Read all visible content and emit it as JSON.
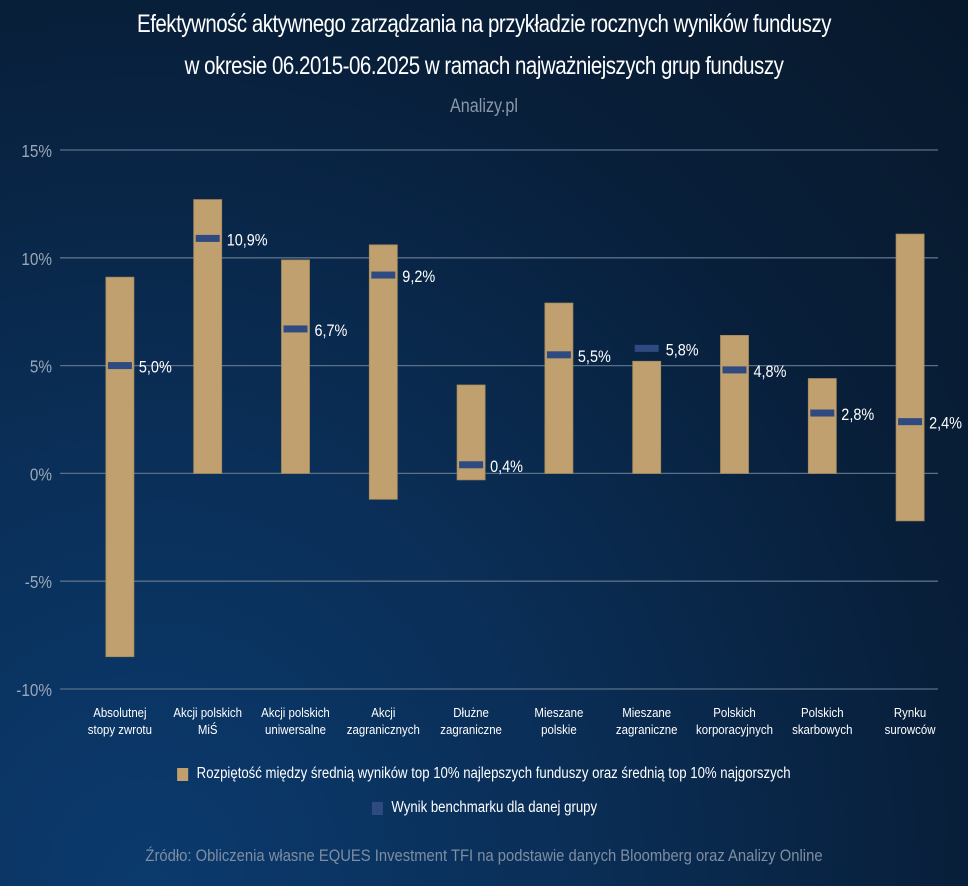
{
  "chart_data": {
    "type": "bar",
    "title": "Efektywność aktywnego zarządzania na przykładzie rocznych wyników funduszy",
    "title_line2": "w okresie 06.2015-06.2025 w ramach najważniejszych grup funduszy",
    "subtitle": "Analizy.pl",
    "ylim": [
      -10,
      15
    ],
    "yticks": [
      15,
      10,
      5,
      0,
      -5,
      -10
    ],
    "ytick_labels": [
      "15%",
      "10%",
      "5%",
      "0%",
      "-5%",
      "-10%"
    ],
    "grid": true,
    "categories": [
      [
        "Absolutnej",
        "stopy zwrotu"
      ],
      [
        "Akcji polskich",
        "MiŚ"
      ],
      [
        "Akcji polskich",
        "uniwersalne"
      ],
      [
        "Akcji",
        "zagranicznych"
      ],
      [
        "Dłużne",
        "zagraniczne"
      ],
      [
        "Mieszane",
        "polskie"
      ],
      [
        "Mieszane",
        "zagraniczne"
      ],
      [
        "Polskich",
        "korporacyjnych"
      ],
      [
        "Polskich",
        "skarbowych"
      ],
      [
        "Rynku",
        "surowców"
      ]
    ],
    "series": [
      {
        "name": "Rozpiętość między średnią wyników top 10% najlepszych funduszy oraz średnią top 10% najgorszych",
        "type": "floating-bar",
        "color": "#bfa06e",
        "high": [
          9.1,
          12.7,
          9.9,
          10.6,
          4.1,
          7.9,
          5.2,
          6.4,
          4.4,
          11.1
        ],
        "low": [
          -8.5,
          0,
          0,
          -1.2,
          -0.3,
          0,
          0,
          0,
          0,
          -2.2
        ]
      },
      {
        "name": "Wynik benchmarku dla danej grupy",
        "type": "marker",
        "color": "#2e4a80",
        "values": [
          5.0,
          10.9,
          6.7,
          9.2,
          0.4,
          5.5,
          5.8,
          4.8,
          2.8,
          2.4
        ],
        "labels": [
          "5,0%",
          "10,9%",
          "6,7%",
          "9,2%",
          "0,4%",
          "5,5%",
          "5,8%",
          "4,8%",
          "2,8%",
          "2,4%"
        ]
      }
    ],
    "legend_position": "bottom",
    "source": "Źródło: Obliczenia własne EQUES Investment TFI na podstawie danych Bloomberg oraz Analizy Online"
  }
}
